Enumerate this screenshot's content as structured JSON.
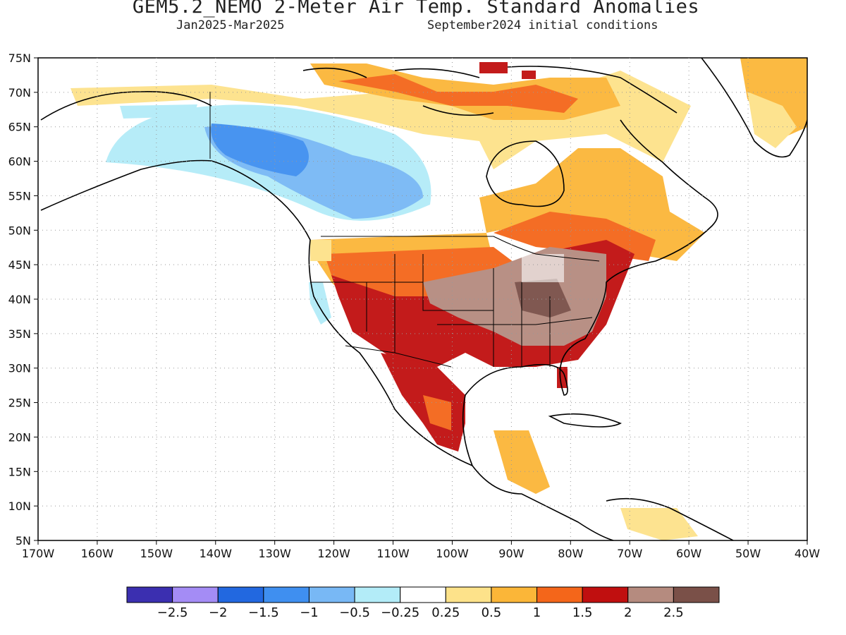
{
  "header": {
    "title": "GEM5.2_NEMO 2-Meter Air Temp. Standard Anomalies",
    "period": "Jan2025-Mar2025",
    "init": "September2024 initial conditions"
  },
  "axes": {
    "lat_labels": [
      "75N",
      "70N",
      "65N",
      "60N",
      "55N",
      "50N",
      "45N",
      "40N",
      "35N",
      "30N",
      "25N",
      "20N",
      "15N",
      "10N",
      "5N"
    ],
    "lon_labels": [
      "170W",
      "160W",
      "150W",
      "140W",
      "130W",
      "120W",
      "110W",
      "100W",
      "90W",
      "80W",
      "70W",
      "60W",
      "50W",
      "40W"
    ],
    "lat_range": [
      5,
      75
    ],
    "lon_range": [
      -170,
      -40
    ],
    "grid": "dotted"
  },
  "colorbar": {
    "colors": [
      "#3b2fb0",
      "#a48cf5",
      "#2268e0",
      "#3f8ff0",
      "#78b8f5",
      "#b3ecf8",
      "#ffffff",
      "#fde28a",
      "#fbb638",
      "#f4661a",
      "#c00f0f",
      "#b58b7f",
      "#7a5048"
    ],
    "labels": [
      "−2.5",
      "−2",
      "−1.5",
      "−1",
      "−0.5",
      "−0.25",
      "0.25",
      "0.5",
      "1",
      "1.5",
      "2",
      "2.5"
    ]
  }
}
